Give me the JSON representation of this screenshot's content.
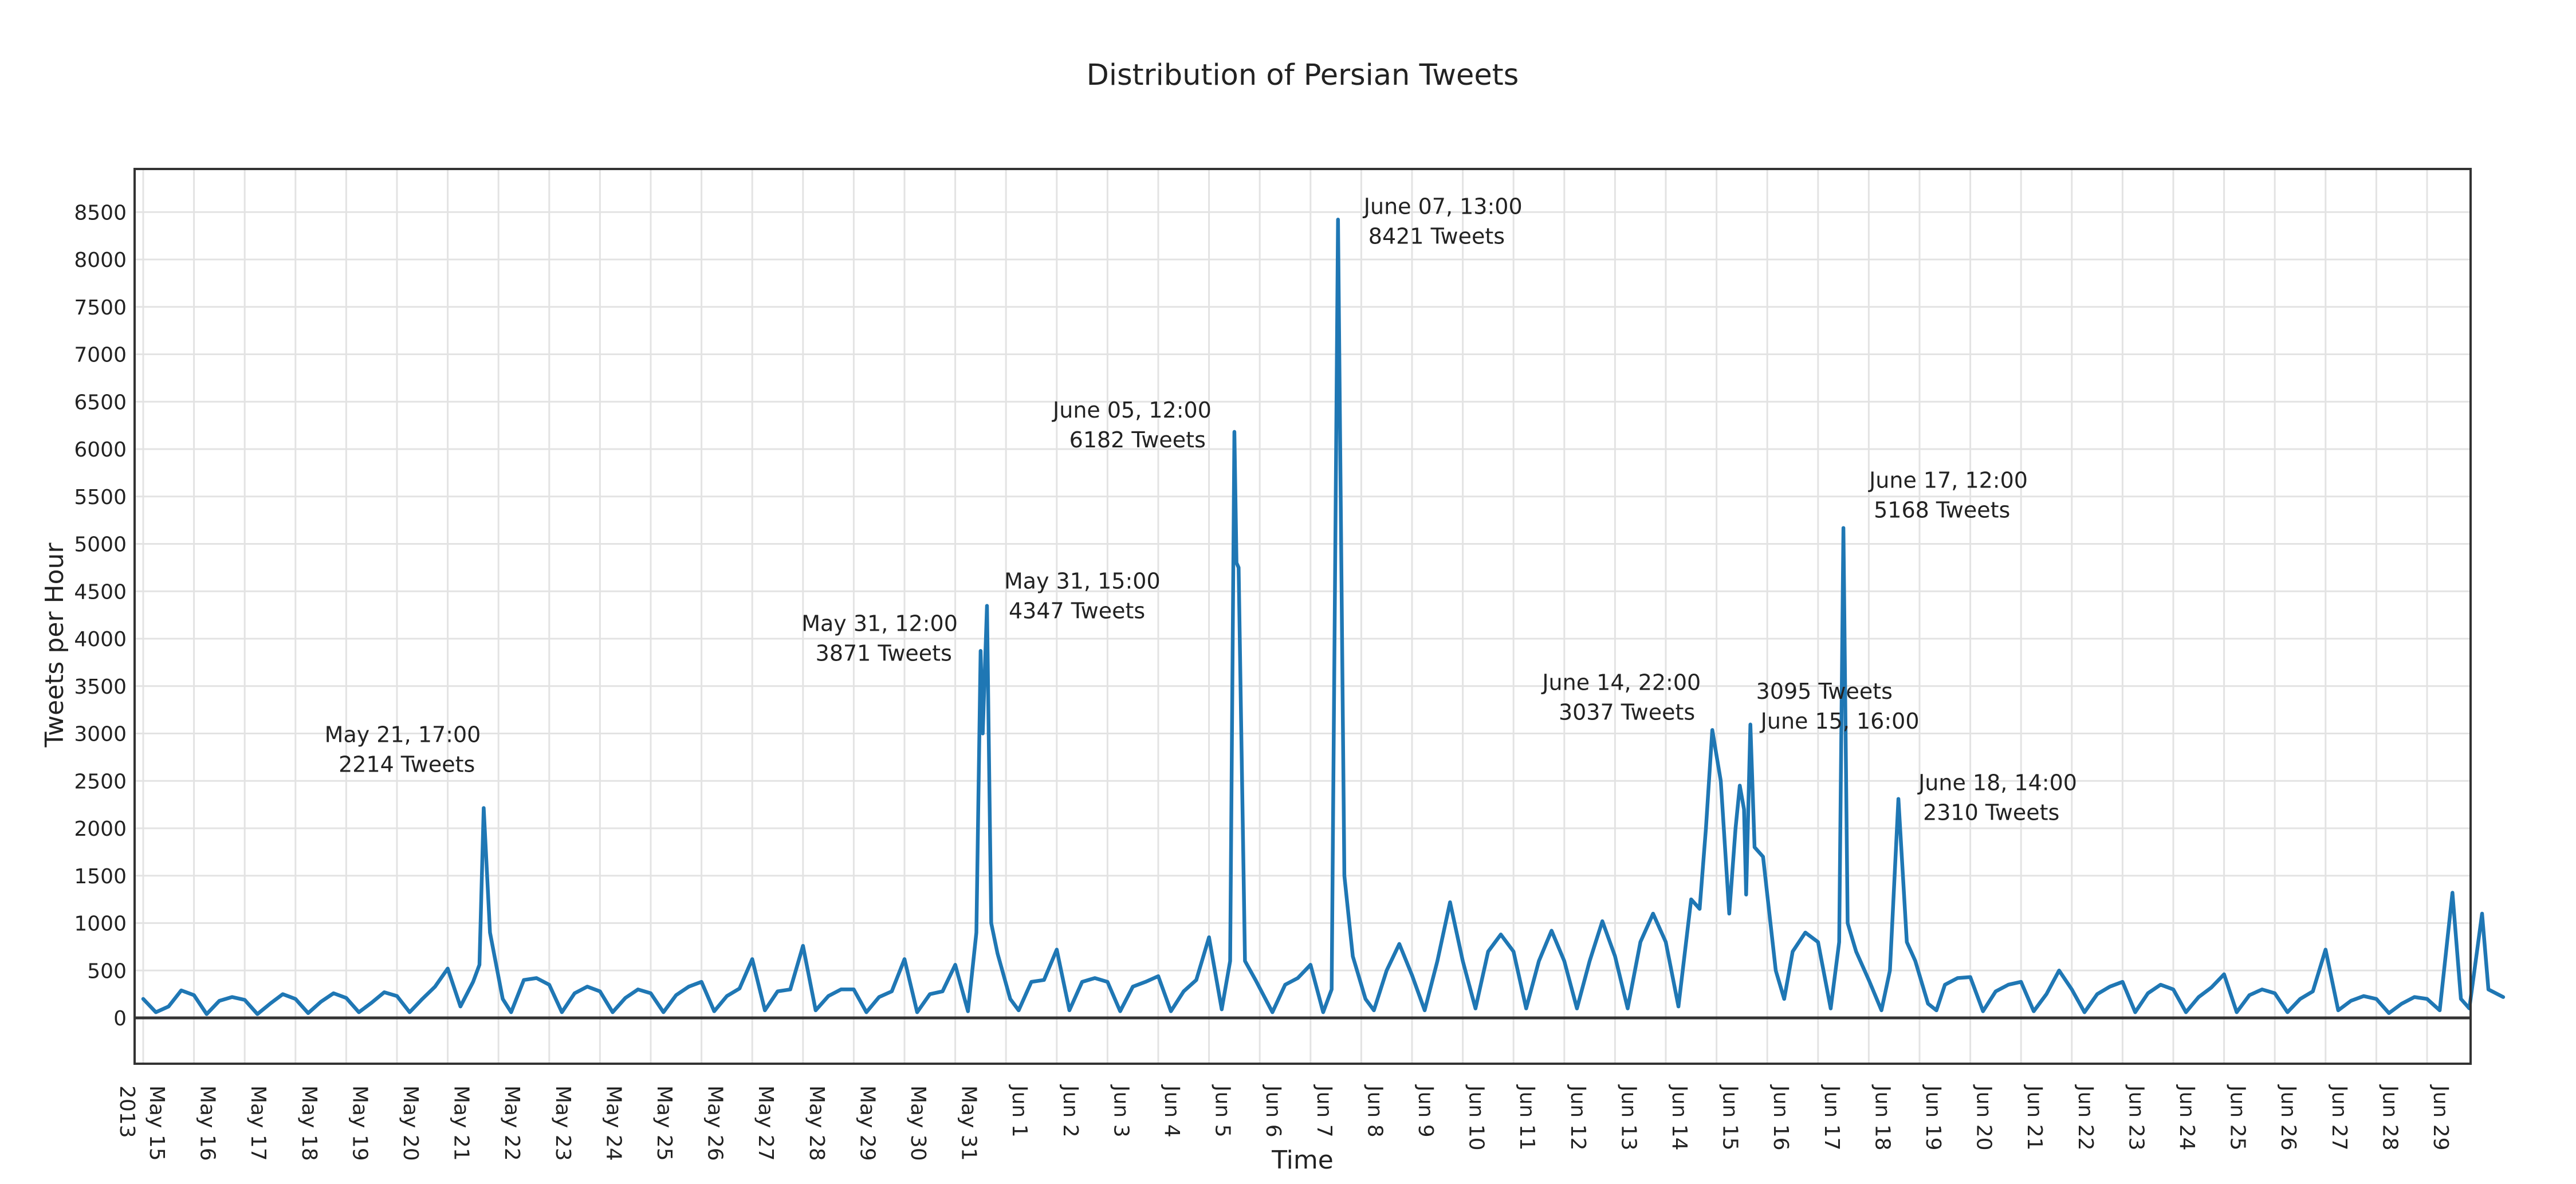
{
  "chart_data": {
    "type": "line",
    "title": "Distribution of Persian Tweets",
    "xlabel": "Time",
    "ylabel": "Tweets per Hour",
    "ylim": [
      -500,
      8750
    ],
    "yticks": [
      0,
      500,
      1000,
      1500,
      2000,
      2500,
      3000,
      3500,
      4000,
      4500,
      5000,
      5500,
      6000,
      6500,
      7000,
      7500,
      8000,
      8500
    ],
    "x_range_days": [
      "2013-05-15",
      "2013-06-30"
    ],
    "xtick_labels": [
      "May 15",
      "May 16",
      "May 17",
      "May 18",
      "May 19",
      "May 20",
      "May 21",
      "May 22",
      "May 23",
      "May 24",
      "May 25",
      "May 26",
      "May 27",
      "May 28",
      "May 29",
      "May 30",
      "May 31",
      "Jun 1",
      "Jun 2",
      "Jun 3",
      "Jun 4",
      "Jun 5",
      "Jun 6",
      "Jun 7",
      "Jun 8",
      "Jun 9",
      "Jun 10",
      "Jun 11",
      "Jun 12",
      "Jun 13",
      "Jun 14",
      "Jun 15",
      "Jun 16",
      "Jun 17",
      "Jun 18",
      "Jun 19",
      "Jun 20",
      "Jun 21",
      "Jun 22",
      "Jun 23",
      "Jun 24",
      "Jun 25",
      "Jun 26",
      "Jun 27",
      "Jun 28",
      "Jun 29"
    ],
    "year_label": "2013",
    "grid": true,
    "legend": "none",
    "line_color": "#1f77b4",
    "series": [
      {
        "points": [
          [
            "2013-05-15 00:00",
            200
          ],
          [
            "2013-05-15 06:00",
            60
          ],
          [
            "2013-05-15 12:00",
            120
          ],
          [
            "2013-05-15 18:00",
            290
          ],
          [
            "2013-05-16 00:00",
            240
          ],
          [
            "2013-05-16 06:00",
            40
          ],
          [
            "2013-05-16 12:00",
            180
          ],
          [
            "2013-05-16 18:00",
            220
          ],
          [
            "2013-05-17 00:00",
            190
          ],
          [
            "2013-05-17 06:00",
            40
          ],
          [
            "2013-05-17 12:00",
            150
          ],
          [
            "2013-05-17 18:00",
            250
          ],
          [
            "2013-05-18 00:00",
            200
          ],
          [
            "2013-05-18 06:00",
            50
          ],
          [
            "2013-05-18 12:00",
            170
          ],
          [
            "2013-05-18 18:00",
            260
          ],
          [
            "2013-05-19 00:00",
            210
          ],
          [
            "2013-05-19 06:00",
            60
          ],
          [
            "2013-05-19 12:00",
            160
          ],
          [
            "2013-05-19 18:00",
            270
          ],
          [
            "2013-05-20 00:00",
            230
          ],
          [
            "2013-05-20 06:00",
            60
          ],
          [
            "2013-05-20 12:00",
            200
          ],
          [
            "2013-05-20 18:00",
            330
          ],
          [
            "2013-05-21 00:00",
            520
          ],
          [
            "2013-05-21 06:00",
            120
          ],
          [
            "2013-05-21 12:00",
            380
          ],
          [
            "2013-05-21 15:00",
            560
          ],
          [
            "2013-05-21 17:00",
            2214
          ],
          [
            "2013-05-21 20:00",
            900
          ],
          [
            "2013-05-22 02:00",
            200
          ],
          [
            "2013-05-22 06:00",
            60
          ],
          [
            "2013-05-22 12:00",
            400
          ],
          [
            "2013-05-22 18:00",
            420
          ],
          [
            "2013-05-23 00:00",
            350
          ],
          [
            "2013-05-23 06:00",
            60
          ],
          [
            "2013-05-23 12:00",
            260
          ],
          [
            "2013-05-23 18:00",
            330
          ],
          [
            "2013-05-24 00:00",
            280
          ],
          [
            "2013-05-24 06:00",
            60
          ],
          [
            "2013-05-24 12:00",
            210
          ],
          [
            "2013-05-24 18:00",
            300
          ],
          [
            "2013-05-25 00:00",
            260
          ],
          [
            "2013-05-25 06:00",
            60
          ],
          [
            "2013-05-25 12:00",
            240
          ],
          [
            "2013-05-25 18:00",
            330
          ],
          [
            "2013-05-26 00:00",
            380
          ],
          [
            "2013-05-26 06:00",
            70
          ],
          [
            "2013-05-26 12:00",
            230
          ],
          [
            "2013-05-26 18:00",
            310
          ],
          [
            "2013-05-27 00:00",
            620
          ],
          [
            "2013-05-27 06:00",
            80
          ],
          [
            "2013-05-27 12:00",
            280
          ],
          [
            "2013-05-27 18:00",
            300
          ],
          [
            "2013-05-28 00:00",
            760
          ],
          [
            "2013-05-28 06:00",
            80
          ],
          [
            "2013-05-28 12:00",
            230
          ],
          [
            "2013-05-28 18:00",
            300
          ],
          [
            "2013-05-29 00:00",
            300
          ],
          [
            "2013-05-29 06:00",
            60
          ],
          [
            "2013-05-29 12:00",
            220
          ],
          [
            "2013-05-29 18:00",
            280
          ],
          [
            "2013-05-30 00:00",
            620
          ],
          [
            "2013-05-30 06:00",
            60
          ],
          [
            "2013-05-30 12:00",
            250
          ],
          [
            "2013-05-30 18:00",
            280
          ],
          [
            "2013-05-31 00:00",
            560
          ],
          [
            "2013-05-31 06:00",
            70
          ],
          [
            "2013-05-31 10:00",
            900
          ],
          [
            "2013-05-31 12:00",
            3871
          ],
          [
            "2013-05-31 13:00",
            3000
          ],
          [
            "2013-05-31 15:00",
            4347
          ],
          [
            "2013-05-31 17:00",
            1000
          ],
          [
            "2013-05-31 20:00",
            680
          ],
          [
            "2013-06-01 02:00",
            200
          ],
          [
            "2013-06-01 06:00",
            80
          ],
          [
            "2013-06-01 12:00",
            380
          ],
          [
            "2013-06-01 18:00",
            400
          ],
          [
            "2013-06-02 00:00",
            720
          ],
          [
            "2013-06-02 06:00",
            80
          ],
          [
            "2013-06-02 12:00",
            380
          ],
          [
            "2013-06-02 18:00",
            420
          ],
          [
            "2013-06-03 00:00",
            380
          ],
          [
            "2013-06-03 06:00",
            70
          ],
          [
            "2013-06-03 12:00",
            330
          ],
          [
            "2013-06-03 18:00",
            380
          ],
          [
            "2013-06-04 00:00",
            440
          ],
          [
            "2013-06-04 06:00",
            70
          ],
          [
            "2013-06-04 12:00",
            280
          ],
          [
            "2013-06-04 18:00",
            400
          ],
          [
            "2013-06-05 00:00",
            850
          ],
          [
            "2013-06-05 06:00",
            90
          ],
          [
            "2013-06-05 10:00",
            600
          ],
          [
            "2013-06-05 12:00",
            6182
          ],
          [
            "2013-06-05 13:00",
            4800
          ],
          [
            "2013-06-05 14:00",
            4750
          ],
          [
            "2013-06-05 17:00",
            600
          ],
          [
            "2013-06-05 22:00",
            400
          ],
          [
            "2013-06-06 06:00",
            60
          ],
          [
            "2013-06-06 12:00",
            350
          ],
          [
            "2013-06-06 18:00",
            420
          ],
          [
            "2013-06-07 00:00",
            560
          ],
          [
            "2013-06-07 06:00",
            60
          ],
          [
            "2013-06-07 10:00",
            300
          ],
          [
            "2013-06-07 13:00",
            8421
          ],
          [
            "2013-06-07 16:00",
            1500
          ],
          [
            "2013-06-07 20:00",
            650
          ],
          [
            "2013-06-08 02:00",
            200
          ],
          [
            "2013-06-08 06:00",
            80
          ],
          [
            "2013-06-08 12:00",
            500
          ],
          [
            "2013-06-08 18:00",
            780
          ],
          [
            "2013-06-09 00:00",
            450
          ],
          [
            "2013-06-09 06:00",
            80
          ],
          [
            "2013-06-09 12:00",
            600
          ],
          [
            "2013-06-09 18:00",
            1220
          ],
          [
            "2013-06-10 00:00",
            600
          ],
          [
            "2013-06-10 06:00",
            100
          ],
          [
            "2013-06-10 12:00",
            700
          ],
          [
            "2013-06-10 18:00",
            880
          ],
          [
            "2013-06-11 00:00",
            700
          ],
          [
            "2013-06-11 06:00",
            100
          ],
          [
            "2013-06-11 12:00",
            600
          ],
          [
            "2013-06-11 18:00",
            920
          ],
          [
            "2013-06-12 00:00",
            600
          ],
          [
            "2013-06-12 06:00",
            100
          ],
          [
            "2013-06-12 12:00",
            600
          ],
          [
            "2013-06-12 18:00",
            1020
          ],
          [
            "2013-06-13 00:00",
            650
          ],
          [
            "2013-06-13 06:00",
            100
          ],
          [
            "2013-06-13 12:00",
            800
          ],
          [
            "2013-06-13 18:00",
            1100
          ],
          [
            "2013-06-14 00:00",
            800
          ],
          [
            "2013-06-14 06:00",
            120
          ],
          [
            "2013-06-14 12:00",
            1250
          ],
          [
            "2013-06-14 16:00",
            1150
          ],
          [
            "2013-06-14 19:00",
            2000
          ],
          [
            "2013-06-14 22:00",
            3037
          ],
          [
            "2013-06-15 02:00",
            2500
          ],
          [
            "2013-06-15 06:00",
            1100
          ],
          [
            "2013-06-15 09:00",
            2000
          ],
          [
            "2013-06-15 11:00",
            2450
          ],
          [
            "2013-06-15 13:00",
            2200
          ],
          [
            "2013-06-15 14:00",
            1300
          ],
          [
            "2013-06-15 16:00",
            3095
          ],
          [
            "2013-06-15 18:00",
            1800
          ],
          [
            "2013-06-15 22:00",
            1700
          ],
          [
            "2013-06-16 04:00",
            500
          ],
          [
            "2013-06-16 08:00",
            200
          ],
          [
            "2013-06-16 12:00",
            700
          ],
          [
            "2013-06-16 18:00",
            900
          ],
          [
            "2013-06-17 00:00",
            800
          ],
          [
            "2013-06-17 06:00",
            100
          ],
          [
            "2013-06-17 10:00",
            800
          ],
          [
            "2013-06-17 12:00",
            5168
          ],
          [
            "2013-06-17 14:00",
            1000
          ],
          [
            "2013-06-17 18:00",
            700
          ],
          [
            "2013-06-18 00:00",
            400
          ],
          [
            "2013-06-18 06:00",
            80
          ],
          [
            "2013-06-18 10:00",
            500
          ],
          [
            "2013-06-18 14:00",
            2310
          ],
          [
            "2013-06-18 18:00",
            800
          ],
          [
            "2013-06-18 22:00",
            600
          ],
          [
            "2013-06-19 04:00",
            150
          ],
          [
            "2013-06-19 08:00",
            80
          ],
          [
            "2013-06-19 12:00",
            350
          ],
          [
            "2013-06-19 18:00",
            420
          ],
          [
            "2013-06-20 00:00",
            430
          ],
          [
            "2013-06-20 06:00",
            70
          ],
          [
            "2013-06-20 12:00",
            280
          ],
          [
            "2013-06-20 18:00",
            350
          ],
          [
            "2013-06-21 00:00",
            380
          ],
          [
            "2013-06-21 06:00",
            70
          ],
          [
            "2013-06-21 12:00",
            250
          ],
          [
            "2013-06-21 18:00",
            500
          ],
          [
            "2013-06-22 00:00",
            300
          ],
          [
            "2013-06-22 06:00",
            60
          ],
          [
            "2013-06-22 12:00",
            250
          ],
          [
            "2013-06-22 18:00",
            330
          ],
          [
            "2013-06-23 00:00",
            380
          ],
          [
            "2013-06-23 06:00",
            60
          ],
          [
            "2013-06-23 12:00",
            260
          ],
          [
            "2013-06-23 18:00",
            350
          ],
          [
            "2013-06-24 00:00",
            300
          ],
          [
            "2013-06-24 06:00",
            60
          ],
          [
            "2013-06-24 12:00",
            220
          ],
          [
            "2013-06-24 18:00",
            320
          ],
          [
            "2013-06-25 00:00",
            460
          ],
          [
            "2013-06-25 06:00",
            60
          ],
          [
            "2013-06-25 12:00",
            240
          ],
          [
            "2013-06-25 18:00",
            300
          ],
          [
            "2013-06-26 00:00",
            260
          ],
          [
            "2013-06-26 06:00",
            60
          ],
          [
            "2013-06-26 12:00",
            200
          ],
          [
            "2013-06-26 18:00",
            280
          ],
          [
            "2013-06-27 00:00",
            720
          ],
          [
            "2013-06-27 06:00",
            80
          ],
          [
            "2013-06-27 12:00",
            180
          ],
          [
            "2013-06-27 18:00",
            230
          ],
          [
            "2013-06-28 00:00",
            200
          ],
          [
            "2013-06-28 06:00",
            50
          ],
          [
            "2013-06-28 12:00",
            150
          ],
          [
            "2013-06-28 18:00",
            220
          ],
          [
            "2013-06-29 00:00",
            200
          ],
          [
            "2013-06-29 06:00",
            80
          ],
          [
            "2013-06-29 12:00",
            1320
          ],
          [
            "2013-06-29 16:00",
            200
          ],
          [
            "2013-06-29 20:00",
            100
          ],
          [
            "2013-06-30 02:00",
            1100
          ],
          [
            "2013-06-30 05:00",
            300
          ],
          [
            "2013-06-30 12:00",
            220
          ]
        ]
      }
    ],
    "annotations": [
      {
        "date": "2013-05-21 17:00",
        "value": 2214,
        "line1": "May 21, 17:00",
        "line2": "2214 Tweets"
      },
      {
        "date": "2013-05-31 12:00",
        "value": 3871,
        "line1": "May 31, 12:00",
        "line2": "3871 Tweets"
      },
      {
        "date": "2013-05-31 15:00",
        "value": 4347,
        "line1": "May 31, 15:00",
        "line2": "4347 Tweets"
      },
      {
        "date": "2013-06-05 12:00",
        "value": 6182,
        "line1": "June 05, 12:00",
        "line2": "6182 Tweets"
      },
      {
        "date": "2013-06-07 13:00",
        "value": 8421,
        "line1": "June 07, 13:00",
        "line2": "8421 Tweets"
      },
      {
        "date": "2013-06-14 22:00",
        "value": 3037,
        "line1": "June 14, 22:00",
        "line2": "3037 Tweets"
      },
      {
        "date": "2013-06-15 16:00",
        "value": 3095,
        "line1": "3095 Tweets",
        "line2": "June 15, 16:00"
      },
      {
        "date": "2013-06-17 12:00",
        "value": 5168,
        "line1": "June 17, 12:00",
        "line2": "5168 Tweets"
      },
      {
        "date": "2013-06-18 14:00",
        "value": 2310,
        "line1": "June 18, 14:00",
        "line2": "2310 Tweets"
      }
    ]
  }
}
